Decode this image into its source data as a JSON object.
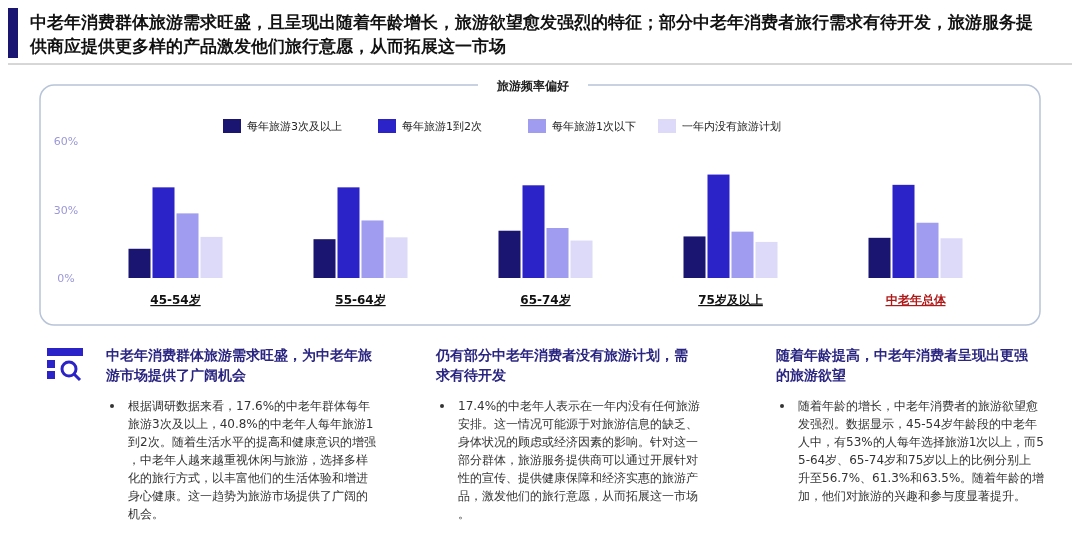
{
  "chart_data": {
    "type": "bar",
    "title": "中老年消费群体旅游需求旺盛，且呈现出随着年龄增长，旅游欲望愈发强烈的特征；部分中老年消费者旅行需求有待开发，旅游服务提供商应提供更多样的产品激发他们旅行意愿，从而拓展这一市场",
    "subtitle": "旅游频率偏好",
    "categories": [
      "45-54岁",
      "55-64岁",
      "65-74岁",
      "75岁及以上",
      "中老年总体"
    ],
    "series": [
      {
        "name": "每年旅游3次及以上",
        "color": "#1a1570",
        "values": [
          12.8,
          17.0,
          20.7,
          18.2,
          17.6
        ]
      },
      {
        "name": "每年旅游1到2次",
        "color": "#2b22c8",
        "values": [
          39.7,
          39.7,
          40.6,
          45.3,
          40.8
        ]
      },
      {
        "name": "每年旅游1次以下",
        "color": "#a09cf0",
        "values": [
          28.3,
          25.2,
          21.9,
          20.3,
          24.2
        ]
      },
      {
        "name": "一年内没有旅游计划",
        "color": "#dcdaf8",
        "values": [
          18.0,
          17.8,
          16.4,
          15.8,
          17.4
        ]
      }
    ],
    "ylim": [
      0,
      60
    ],
    "yticks": [
      {
        "value": 0,
        "label": "0%"
      },
      {
        "value": 30,
        "label": "30%"
      },
      {
        "value": 60,
        "label": "60%"
      }
    ],
    "grid": false,
    "legend": "top",
    "annotations": [
      "中老年消费群体旅游需求旺盛，为中老年旅游市场提供了广阔机会",
      "根据调研数据来看，17.6%的中老年群体每年旅游3次及以上，40.8%的中老年人每年旅游1到2次。随着生活水平的提高和健康意识的增强，中老年人越来越重视休闲与旅游，选择多样化的旅行方式，以丰富他们的生活体验和增进身心健康。这一趋势为旅游市场提供了广阔的机会。",
      "仍有部分中老年消费者没有旅游计划，需求有待开发",
      "17.4%的中老年人表示在一年内没有任何旅游安排。这一情况可能源于对旅游信息的缺乏、身体状况的顾虑或经济因素的影响。针对这一部分群体，旅游服务提供商可以通过开展针对性的宣传、提供健康保障和经济实惠的旅游产品，激发他们的旅行意愿，从而拓展这一市场。",
      "随着年龄提高，中老年消费者呈现出更强的旅游欲望",
      "随着年龄的增长，中老年消费者的旅游欲望愈发强烈。数据显示，45-54岁年龄段的中老年人中，有53%的人每年选择旅游1次以上，而55-64岁、65-74岁和75岁以上的比例分别上升至56.7%、61.3%和63.5%。随着年龄的增加，他们对旅游的兴趣和参与度显著提升。"
    ]
  }
}
